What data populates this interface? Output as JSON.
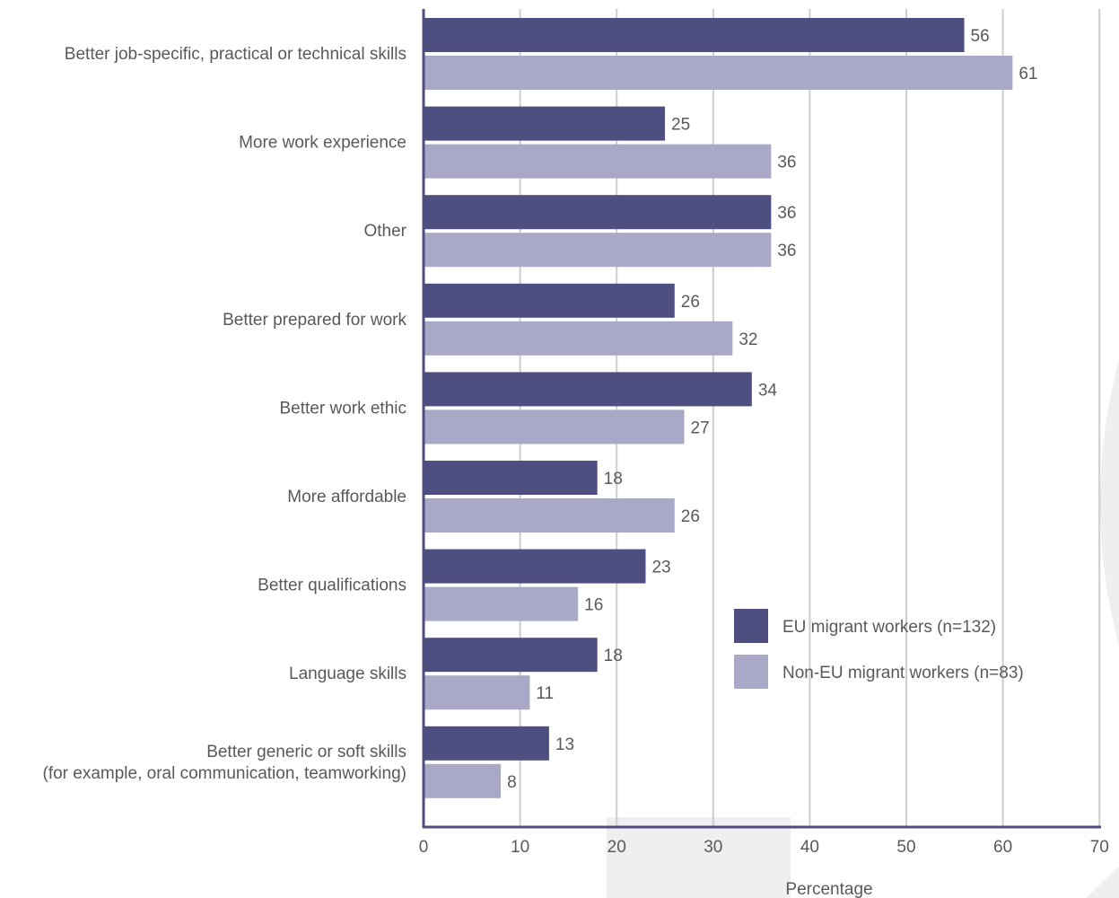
{
  "chart_data": {
    "type": "bar",
    "orientation": "horizontal",
    "categories": [
      [
        "Better job-specific, practical or technical skills"
      ],
      [
        "More work experience"
      ],
      [
        "Other"
      ],
      [
        "Better prepared for work"
      ],
      [
        "Better work ethic"
      ],
      [
        "More affordable"
      ],
      [
        "Better qualifications"
      ],
      [
        "Language skills"
      ],
      [
        "Better generic or soft skills",
        "(for example, oral communication, teamworking)"
      ]
    ],
    "series": [
      {
        "name": "EU migrant workers (n=132)",
        "color": "#4f4e80",
        "values": [
          56,
          25,
          36,
          26,
          34,
          18,
          23,
          18,
          13
        ]
      },
      {
        "name": "Non-EU migrant workers (n=83)",
        "color": "#a9a8c7",
        "values": [
          61,
          36,
          36,
          32,
          27,
          26,
          16,
          11,
          8
        ]
      }
    ],
    "xlabel": "Percentage",
    "xlim": [
      0,
      70
    ],
    "xticks": [
      0,
      10,
      20,
      30,
      40,
      50,
      60,
      70
    ],
    "grid": "vertical",
    "legend_position": "bottom-right",
    "colors": {
      "axis": "#4f4e80",
      "grid": "#cdcdcd",
      "text": "#58595b",
      "background_decor": "#efeff1"
    }
  }
}
